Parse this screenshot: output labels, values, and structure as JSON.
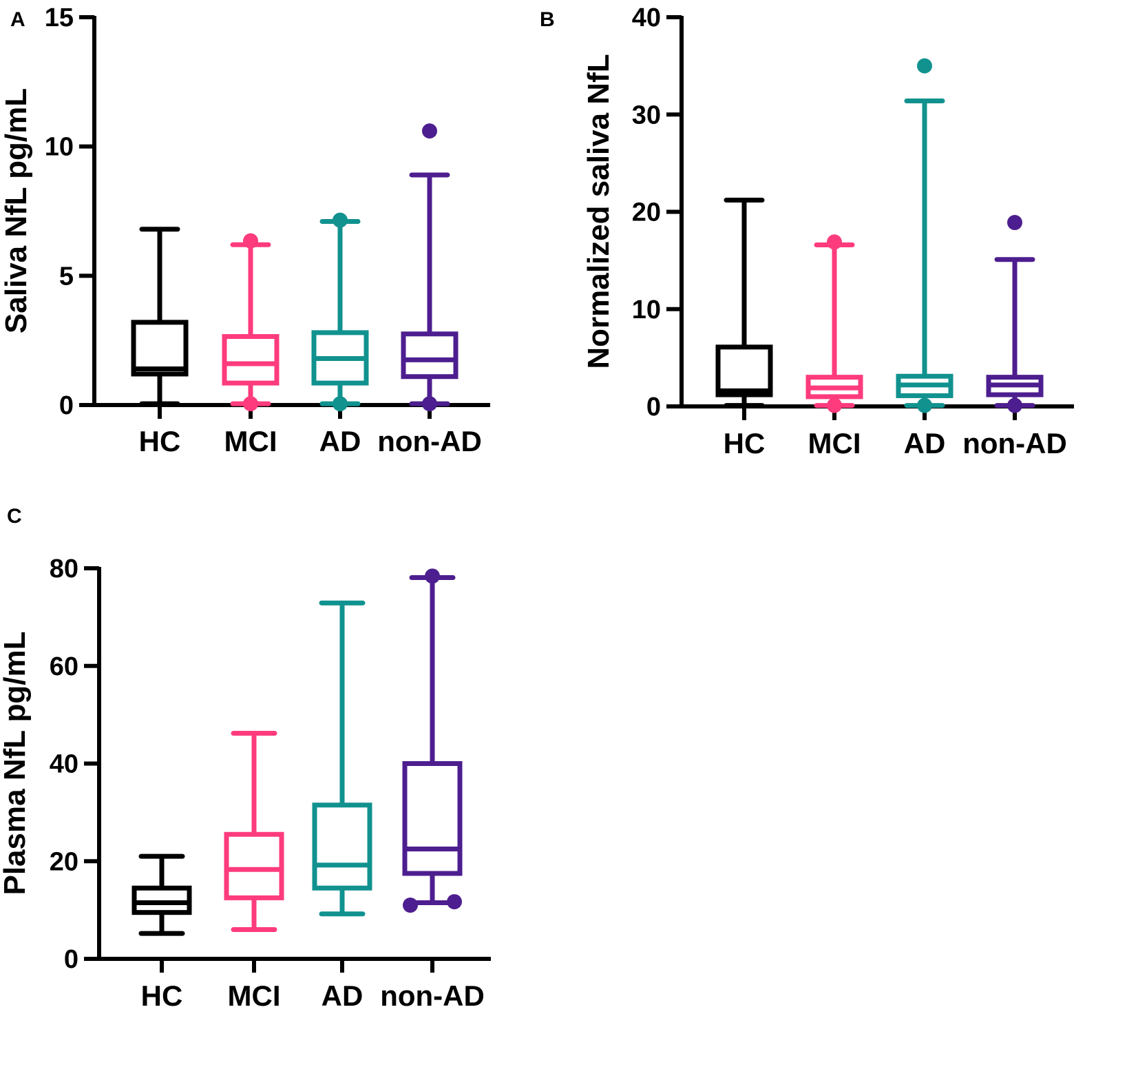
{
  "colors": {
    "HC": "#000000",
    "MCI": "#fd3b7d",
    "AD": "#11928f",
    "non-AD": "#4d1e8f"
  },
  "chart_data": [
    {
      "id": "A",
      "panel_label": "A",
      "type": "box",
      "title": "",
      "xlabel": "",
      "ylabel": "Saliva NfL pg/mL",
      "ylim": [
        0,
        15
      ],
      "yticks": [
        0,
        5,
        10,
        15
      ],
      "ytick_labels": [
        "0",
        "5",
        "10",
        "15"
      ],
      "categories": [
        "HC",
        "MCI",
        "AD",
        "non-AD"
      ],
      "groups": [
        {
          "name": "HC",
          "min": 0.05,
          "q1": 1.2,
          "median": 1.4,
          "q3": 3.2,
          "max": 6.8,
          "outliers": []
        },
        {
          "name": "MCI",
          "min": 0.05,
          "q1": 0.85,
          "median": 1.6,
          "q3": 2.65,
          "max": 6.2,
          "outliers": [
            6.35,
            0.05
          ]
        },
        {
          "name": "AD",
          "min": 0.05,
          "q1": 0.85,
          "median": 1.8,
          "q3": 2.8,
          "max": 7.1,
          "outliers": [
            7.15,
            0.05
          ]
        },
        {
          "name": "non-AD",
          "min": 0.05,
          "q1": 1.1,
          "median": 1.75,
          "q3": 2.75,
          "max": 8.9,
          "outliers": [
            10.6,
            0.05
          ]
        }
      ]
    },
    {
      "id": "B",
      "panel_label": "B",
      "type": "box",
      "title": "",
      "xlabel": "",
      "ylabel": "Normalized saliva NfL",
      "ylim": [
        0,
        40
      ],
      "yticks": [
        0,
        10,
        20,
        30,
        40
      ],
      "ytick_labels": [
        "0",
        "10",
        "20",
        "30",
        "40"
      ],
      "categories": [
        "HC",
        "MCI",
        "AD",
        "non-AD"
      ],
      "groups": [
        {
          "name": "HC",
          "min": 0.1,
          "q1": 1.2,
          "median": 1.6,
          "q3": 6.1,
          "max": 21.2,
          "outliers": []
        },
        {
          "name": "MCI",
          "min": 0.1,
          "q1": 1.0,
          "median": 1.9,
          "q3": 3.0,
          "max": 16.6,
          "outliers": [
            16.9,
            0.1
          ]
        },
        {
          "name": "AD",
          "min": 0.1,
          "q1": 1.1,
          "median": 2.2,
          "q3": 3.1,
          "max": 31.4,
          "outliers": [
            35.0,
            0.1
          ]
        },
        {
          "name": "non-AD",
          "min": 0.1,
          "q1": 1.2,
          "median": 2.2,
          "q3": 3.0,
          "max": 15.1,
          "outliers": [
            18.9,
            0.1
          ]
        }
      ]
    },
    {
      "id": "C",
      "panel_label": "C",
      "type": "box",
      "title": "",
      "xlabel": "",
      "ylabel": "Plasma NfL pg/mL",
      "ylim": [
        0,
        80
      ],
      "yticks": [
        0,
        20,
        40,
        60,
        80
      ],
      "ytick_labels": [
        "0",
        "20",
        "40",
        "60",
        "80"
      ],
      "categories": [
        "HC",
        "MCI",
        "AD",
        "non-AD"
      ],
      "groups": [
        {
          "name": "HC",
          "min": 5.2,
          "q1": 9.5,
          "median": 11.5,
          "q3": 14.5,
          "max": 21.0,
          "outliers": []
        },
        {
          "name": "MCI",
          "min": 6.0,
          "q1": 12.5,
          "median": 18.3,
          "q3": 25.5,
          "max": 46.2,
          "outliers": []
        },
        {
          "name": "AD",
          "min": 9.2,
          "q1": 14.5,
          "median": 19.2,
          "q3": 31.5,
          "max": 72.9,
          "outliers": []
        },
        {
          "name": "non-AD",
          "min": 11.5,
          "q1": 17.5,
          "median": 22.5,
          "q3": 40.0,
          "max": 78.1,
          "outliers": [
            78.4,
            11.0,
            11.7
          ]
        }
      ]
    }
  ]
}
